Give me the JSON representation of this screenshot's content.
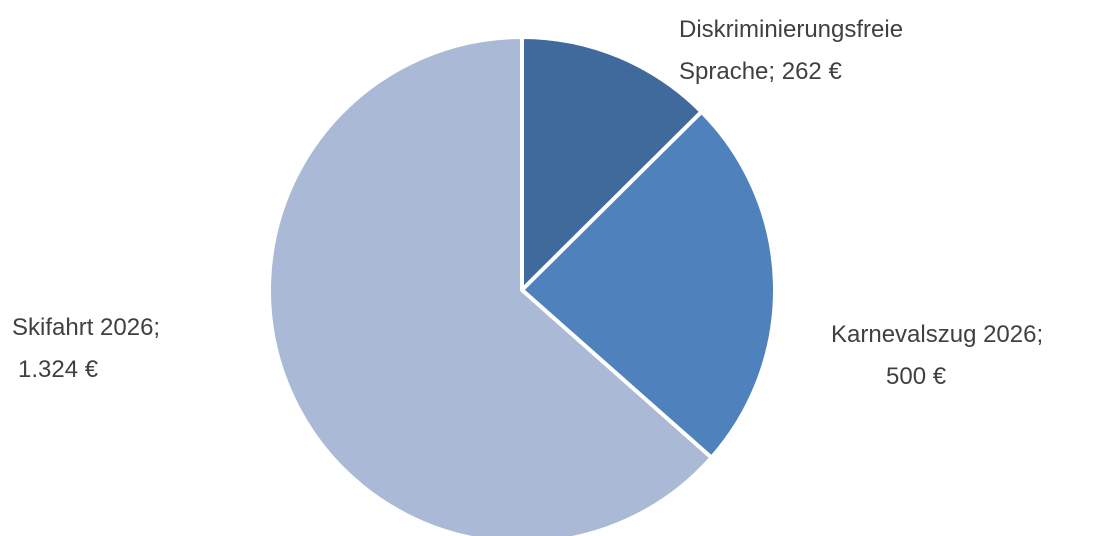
{
  "chart_data": {
    "type": "pie",
    "title": "",
    "slices": [
      {
        "category": "Diskriminierungsfreie Sprache",
        "value": 262,
        "value_label": "262 €",
        "color": "#406A9C"
      },
      {
        "category": "Karnevalszug 2026",
        "value": 500,
        "value_label": "500 €",
        "color": "#4F81BD"
      },
      {
        "category": "Skifahrt 2026",
        "value": 1324,
        "value_label": "1.324 €",
        "color": "#A9B9D6"
      }
    ],
    "start": "top",
    "direction": "clockwise",
    "legend": "none",
    "data_labels": [
      {
        "lines": [
          "Diskriminierungsfreie",
          "Sprache;  262 €"
        ]
      },
      {
        "lines": [
          "Karnevalszug 2026;",
          "500 €"
        ]
      },
      {
        "lines": [
          "Skifahrt 2026;",
          "1.324 €"
        ]
      }
    ]
  }
}
